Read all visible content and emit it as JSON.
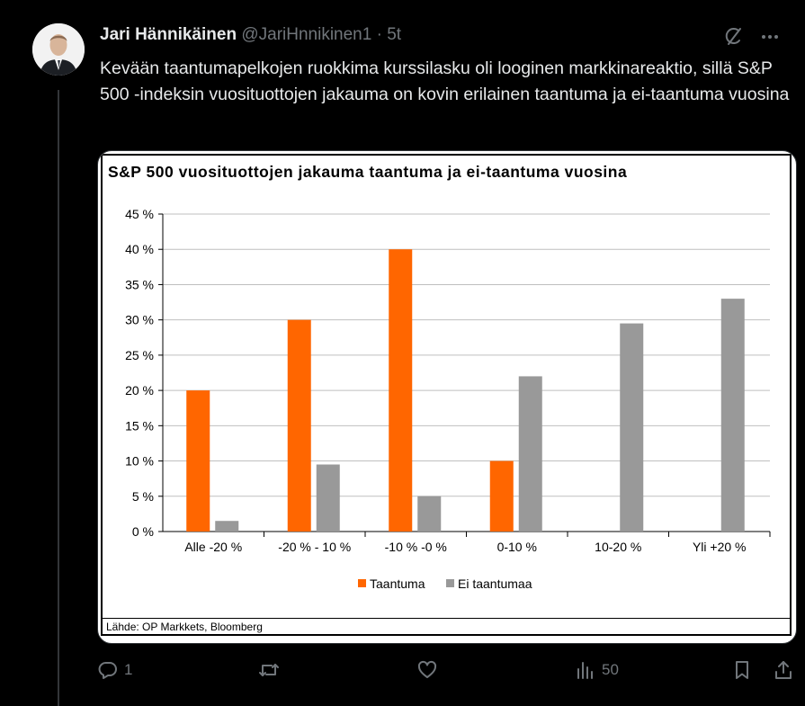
{
  "author": {
    "name": "Jari Hännikäinen",
    "handle": "@JariHnnikinen1",
    "separator": "·",
    "time": "5t"
  },
  "tweet": {
    "text": "Kevään taantumapelkojen ruokkima kurssilasku oli looginen markkinareaktio, sillä S&P 500 -indeksin vuosituottojen jakauma on kovin erilainen taantuma ja ei-taantuma vuosina"
  },
  "icons": {
    "grok": "grok-icon",
    "more": "more-icon",
    "reply": "reply-icon",
    "retweet": "retweet-icon",
    "like": "like-icon",
    "views": "views-icon",
    "bookmark": "bookmark-icon",
    "share": "share-icon"
  },
  "actions": {
    "reply_count": "1",
    "views_count": "50"
  },
  "chart_data": {
    "type": "bar",
    "title": "S&P 500 vuosituottojen jakauma taantuma ja ei-taantuma vuosina",
    "categories": [
      "Alle -20 %",
      "-20 % - 10 %",
      "-10 % -0 %",
      "0-10 %",
      "10-20 %",
      "Yli +20 %"
    ],
    "series": [
      {
        "name": "Taantuma",
        "color": "#ff6600",
        "values": [
          20,
          30,
          40,
          10,
          0,
          0
        ]
      },
      {
        "name": "Ei taantumaa",
        "color": "#999999",
        "values": [
          1.5,
          9.5,
          5,
          22,
          29.5,
          33
        ]
      }
    ],
    "y_ticks": [
      "0 %",
      "5 %",
      "10 %",
      "15 %",
      "20 %",
      "25 %",
      "30 %",
      "35 %",
      "40 %",
      "45 %"
    ],
    "ylim": [
      0,
      45
    ],
    "grid": true,
    "legend": "bottom",
    "source": "Lähde: OP Markkets, Bloomberg"
  }
}
